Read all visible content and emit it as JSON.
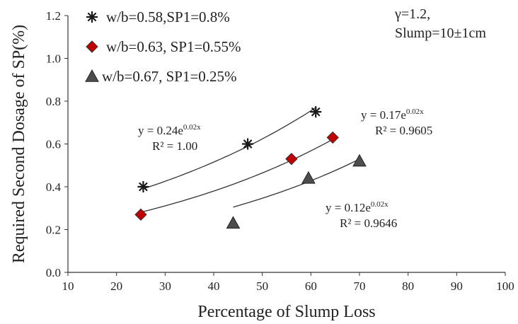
{
  "chart_data": {
    "type": "scatter",
    "xlabel": "Percentage of Slump Loss",
    "ylabel": "Required Second Dosage of SP(%)",
    "xlim": [
      10,
      100
    ],
    "ylim": [
      0.0,
      1.2
    ],
    "x_ticks": [
      "10",
      "20",
      "30",
      "40",
      "50",
      "60",
      "70",
      "80",
      "90",
      "100"
    ],
    "y_ticks": [
      "0.0",
      "0.2",
      "0.4",
      "0.6",
      "0.8",
      "1.0",
      "1.2"
    ],
    "grid": false,
    "legend_position": "top-left",
    "note_lines": [
      "γ=1.2,",
      "Slump=10±1cm"
    ],
    "series": [
      {
        "name": "w/b=0.58,SP1=0.8%",
        "marker": "asterisk",
        "color": "#1a1a1a",
        "points": [
          [
            25.5,
            0.4
          ],
          [
            47,
            0.6
          ],
          [
            61,
            0.75
          ]
        ],
        "fit": {
          "a": 0.24,
          "b": 0.0191,
          "x_range": [
            25.5,
            61
          ]
        },
        "equation": {
          "prefix": "y = 0.24e",
          "exp": "0.02x",
          "r2": "R² = 1.00"
        }
      },
      {
        "name": "w/b=0.63, SP1=0.55%",
        "marker": "diamond",
        "color": "#c00000",
        "points": [
          [
            25,
            0.27
          ],
          [
            56,
            0.53
          ],
          [
            64.5,
            0.63
          ]
        ],
        "fit": {
          "a": 0.17,
          "b": 0.0201,
          "x_range": [
            25,
            64.5
          ]
        },
        "equation": {
          "prefix": "y = 0.17e",
          "exp": "0.02x",
          "r2": "R² = 0.9605"
        }
      },
      {
        "name": "w/b=0.67, SP1=0.25%",
        "marker": "triangle",
        "color": "#4d4d4d",
        "points": [
          [
            44,
            0.23
          ],
          [
            59.5,
            0.44
          ],
          [
            70,
            0.52
          ]
        ],
        "fit": {
          "a": 0.12,
          "b": 0.0212,
          "x_range": [
            44,
            70
          ]
        },
        "equation": {
          "prefix": "y = 0.12e",
          "exp": "0.02x",
          "r2": "R² = 0.9646"
        }
      }
    ]
  }
}
